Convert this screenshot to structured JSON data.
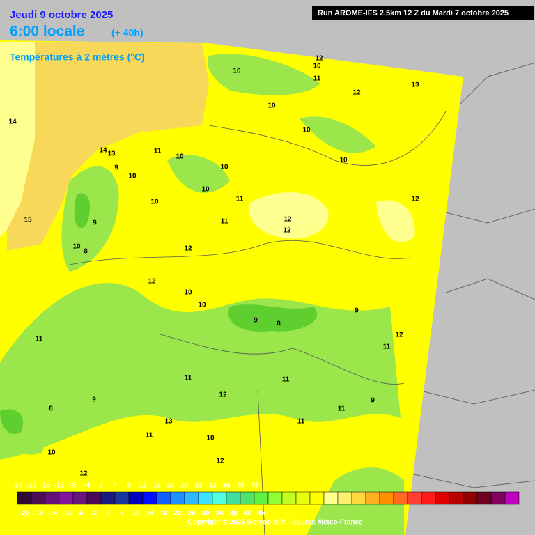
{
  "header": {
    "date": "Jeudi 9 octobre 2025",
    "time": "6:00 locale",
    "lead": "(+ 40h)",
    "parameter": "Températures à 2 mètres (°C)",
    "run": "Run AROME-IFS 2.5km 12 Z du Mardi 7 octobre 2025"
  },
  "contour_labels": [
    12,
    10,
    11,
    10,
    12,
    13,
    10,
    10,
    14,
    14,
    11,
    13,
    10,
    9,
    10,
    10,
    10,
    10,
    11,
    12,
    10,
    15,
    9,
    11,
    12,
    12,
    10,
    8,
    12,
    12,
    10,
    10,
    9,
    9,
    8,
    12,
    11,
    11,
    11,
    11,
    12,
    9,
    8,
    9,
    11,
    13,
    11,
    11,
    10,
    10,
    12,
    12
  ],
  "legend": {
    "top_labels": [
      -24,
      -20,
      -16,
      -12,
      -8,
      -4,
      0,
      4,
      8,
      12,
      16,
      20,
      24,
      28,
      32,
      36,
      40,
      44
    ],
    "bottom_labels": [
      -22,
      -18,
      -14,
      -10,
      -6,
      -2,
      2,
      6,
      10,
      14,
      18,
      22,
      26,
      30,
      34,
      38,
      42,
      46
    ],
    "colors": [
      "#2d0b35",
      "#4a0f55",
      "#64127a",
      "#80149a",
      "#6a1480",
      "#4a0a5a",
      "#1a1a80",
      "#1838a0",
      "#0000c0",
      "#0010ff",
      "#1060ff",
      "#2090ff",
      "#30b8ff",
      "#40e0ff",
      "#50ffe0",
      "#40e0a0",
      "#50e070",
      "#60f040",
      "#90ff30",
      "#c0ff20",
      "#e8ff10",
      "#ffff00",
      "#ffff90",
      "#fff070",
      "#ffd840",
      "#ffb020",
      "#ff9000",
      "#ff6a20",
      "#ff4030",
      "#ff1a1a",
      "#e00000",
      "#b80000",
      "#900000",
      "#700020",
      "#800060",
      "#c000c0"
    ]
  },
  "copyright": "Copyright © 2025 Meteociel.fr - Source Meteo-France"
}
